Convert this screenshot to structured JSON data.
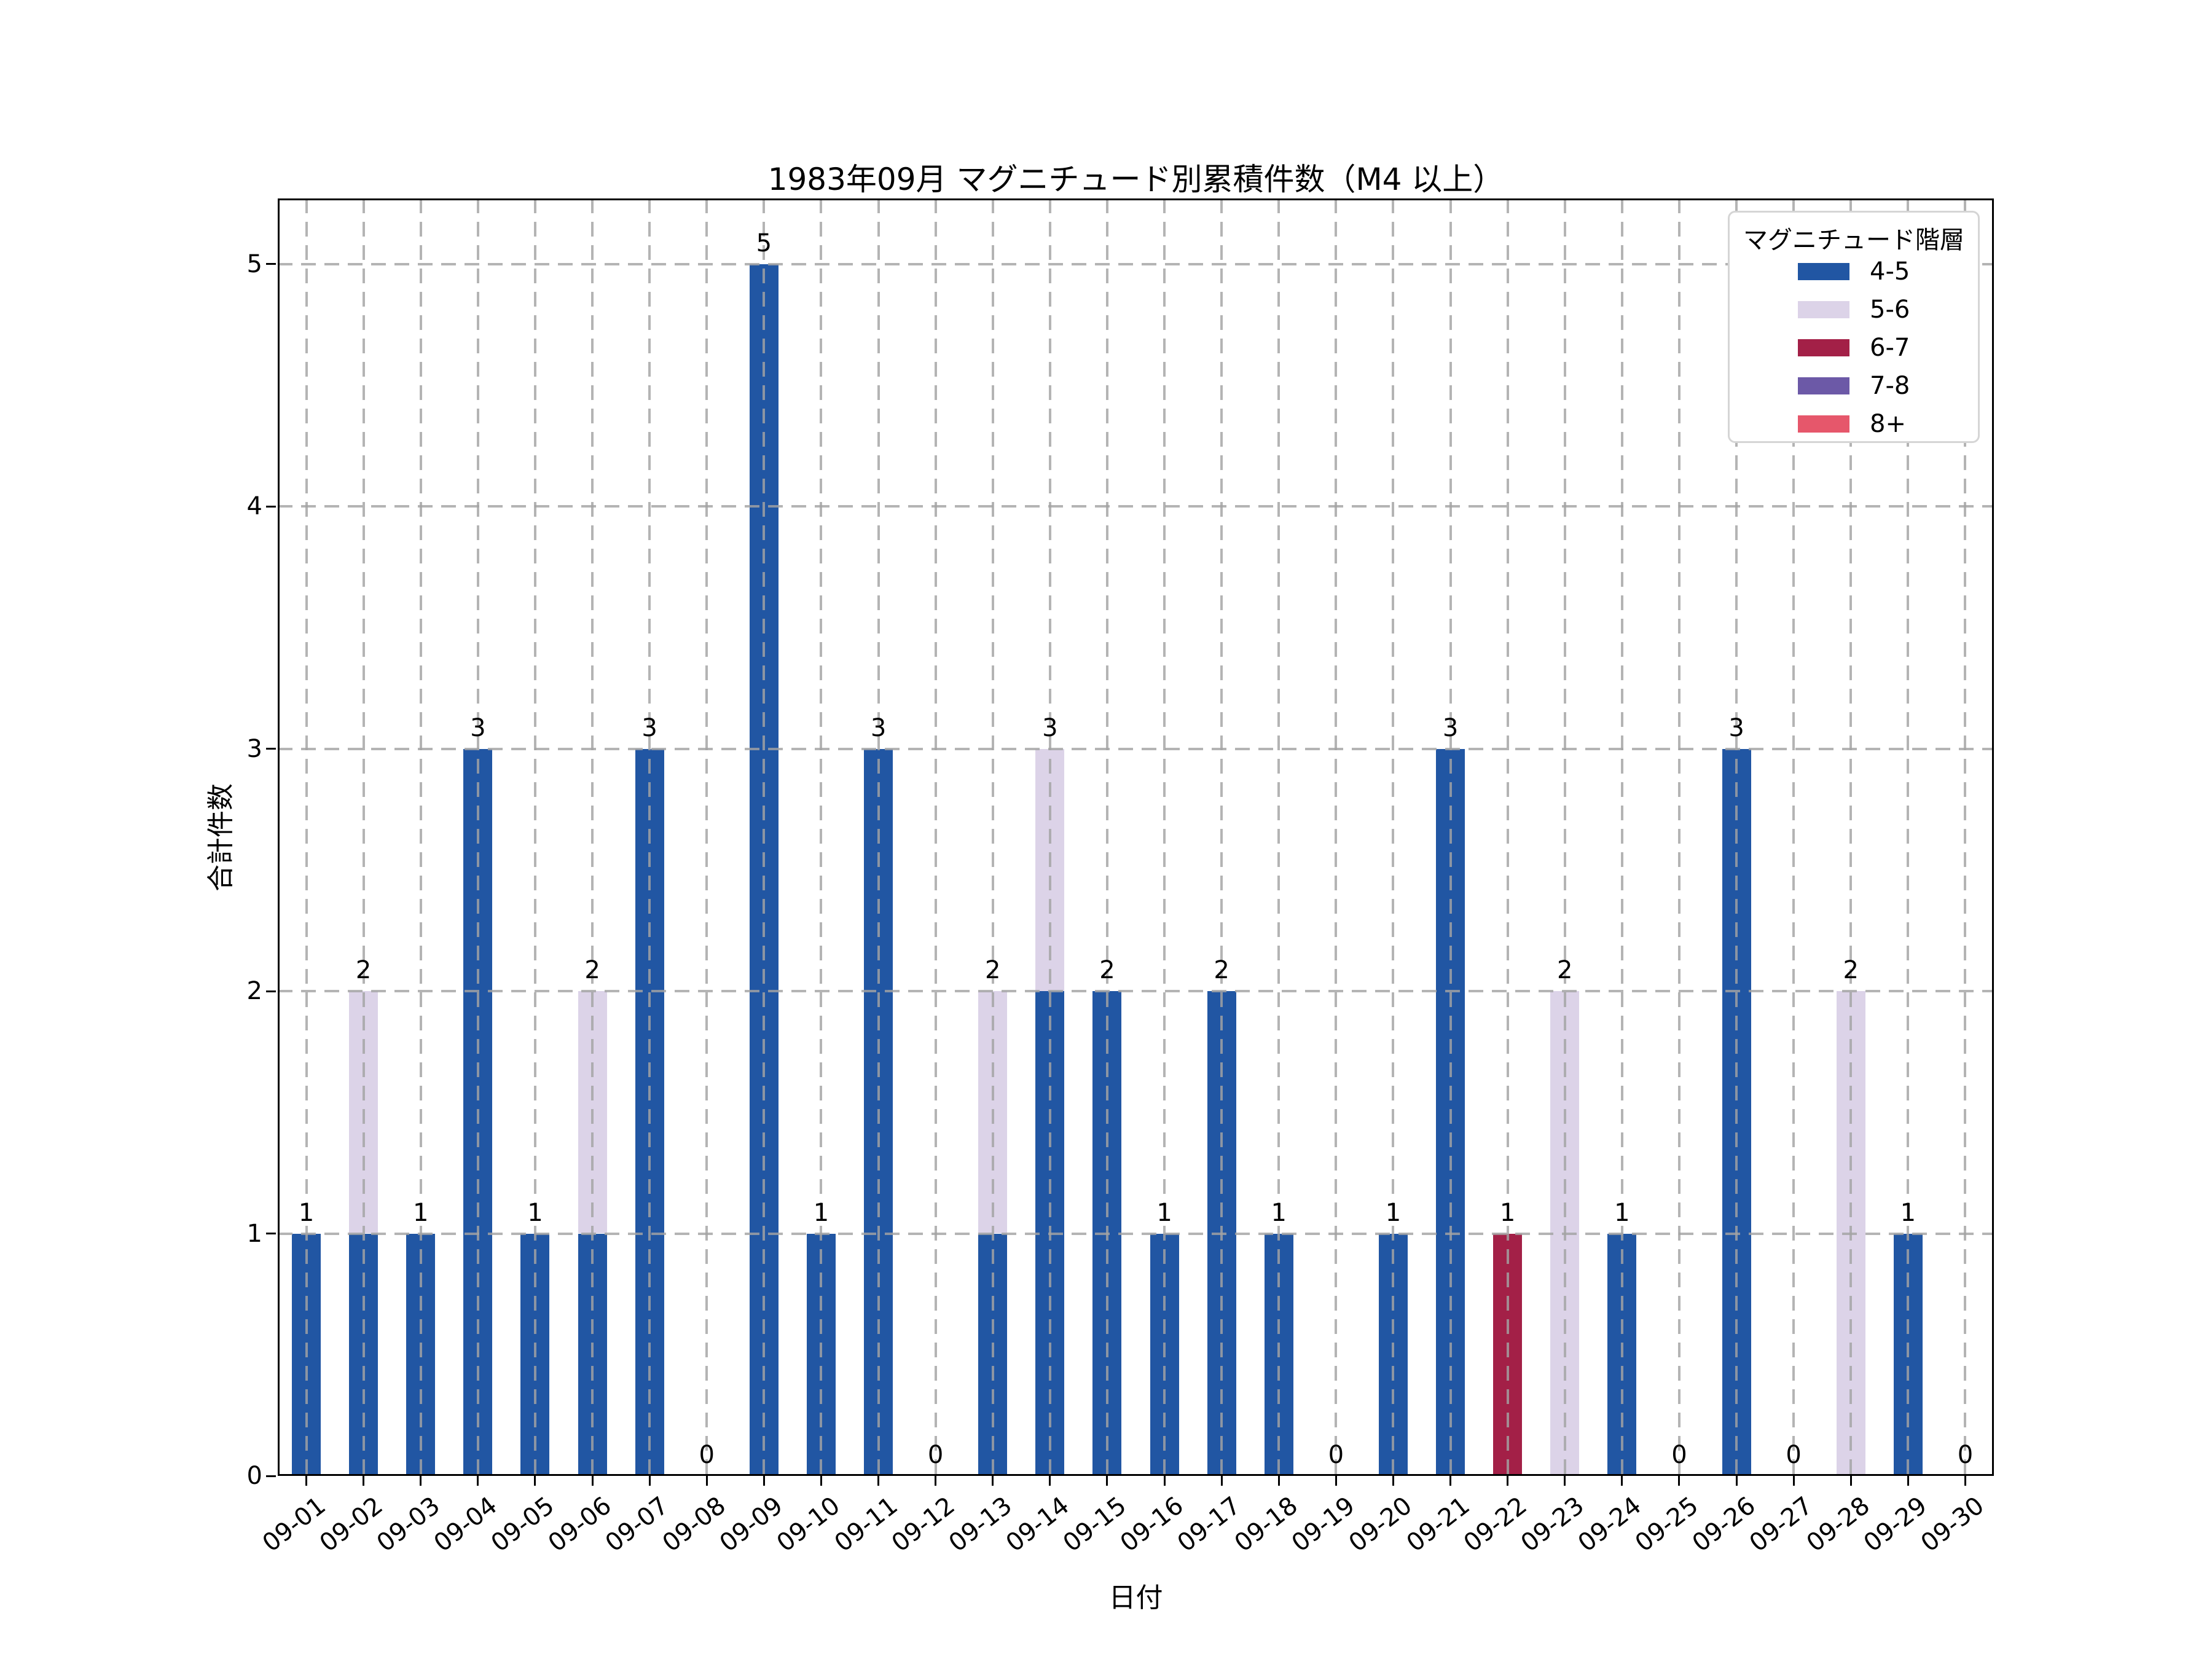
{
  "chart_data": {
    "type": "bar",
    "stacked": true,
    "title": "1983年09月 マグニチュード別累積件数（M4 以上）",
    "xlabel": "日付",
    "ylabel": "合計件数",
    "legend_title": "マグニチュード階層",
    "legend_position": "upper-right",
    "grid": "dashed-over-bars",
    "ylim": [
      0,
      5.27
    ],
    "yticks": [
      0,
      1,
      2,
      3,
      4,
      5
    ],
    "categories": [
      "09-01",
      "09-02",
      "09-03",
      "09-04",
      "09-05",
      "09-06",
      "09-07",
      "09-08",
      "09-09",
      "09-10",
      "09-11",
      "09-12",
      "09-13",
      "09-14",
      "09-15",
      "09-16",
      "09-17",
      "09-18",
      "09-19",
      "09-20",
      "09-21",
      "09-22",
      "09-23",
      "09-24",
      "09-25",
      "09-26",
      "09-27",
      "09-28",
      "09-29",
      "09-30"
    ],
    "series": [
      {
        "name": "4-5",
        "color": "#2156a3",
        "values": [
          1,
          1,
          1,
          3,
          1,
          1,
          3,
          0,
          5,
          1,
          3,
          0,
          1,
          2,
          2,
          1,
          2,
          1,
          0,
          1,
          3,
          0,
          0,
          1,
          0,
          3,
          0,
          0,
          1,
          0
        ]
      },
      {
        "name": "5-6",
        "color": "#dcd3e8",
        "values": [
          0,
          1,
          0,
          0,
          0,
          1,
          0,
          0,
          0,
          0,
          0,
          0,
          1,
          1,
          0,
          0,
          0,
          0,
          0,
          0,
          0,
          0,
          2,
          0,
          0,
          0,
          0,
          2,
          0,
          0
        ]
      },
      {
        "name": "6-7",
        "color": "#a32047",
        "values": [
          0,
          0,
          0,
          0,
          0,
          0,
          0,
          0,
          0,
          0,
          0,
          0,
          0,
          0,
          0,
          0,
          0,
          0,
          0,
          0,
          0,
          1,
          0,
          0,
          0,
          0,
          0,
          0,
          0,
          0
        ]
      },
      {
        "name": "7-8",
        "color": "#6c59a7",
        "values": [
          0,
          0,
          0,
          0,
          0,
          0,
          0,
          0,
          0,
          0,
          0,
          0,
          0,
          0,
          0,
          0,
          0,
          0,
          0,
          0,
          0,
          0,
          0,
          0,
          0,
          0,
          0,
          0,
          0,
          0
        ]
      },
      {
        "name": "8+",
        "color": "#e6576b",
        "values": [
          0,
          0,
          0,
          0,
          0,
          0,
          0,
          0,
          0,
          0,
          0,
          0,
          0,
          0,
          0,
          0,
          0,
          0,
          0,
          0,
          0,
          0,
          0,
          0,
          0,
          0,
          0,
          0,
          0,
          0
        ]
      }
    ],
    "totals": [
      1,
      2,
      1,
      3,
      1,
      2,
      3,
      0,
      5,
      1,
      3,
      0,
      2,
      3,
      2,
      1,
      2,
      1,
      0,
      1,
      3,
      1,
      2,
      1,
      0,
      3,
      0,
      2,
      1,
      0
    ]
  }
}
